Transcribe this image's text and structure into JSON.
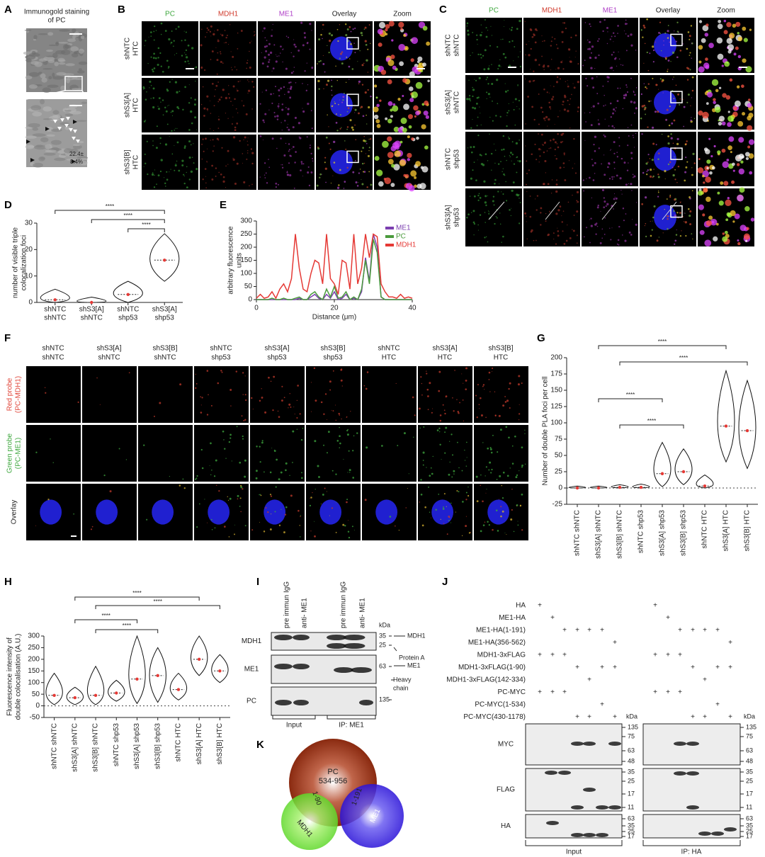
{
  "panel_letters": [
    "A",
    "B",
    "C",
    "D",
    "E",
    "F",
    "G",
    "H",
    "I",
    "J",
    "K"
  ],
  "panels": {
    "A": {
      "title": [
        "Immunogold staining",
        "of PC"
      ],
      "annotation": [
        "22.4±",
        "8.4%"
      ]
    },
    "B": {
      "columns": [
        "PC",
        "MDH1",
        "ME1",
        "Overlay",
        "Zoom"
      ],
      "column_colors": [
        "#3fa83f",
        "#d0392b",
        "#b040c8",
        "#222222",
        "#222222"
      ],
      "rows": [
        [
          "shNTC",
          "HTC"
        ],
        [
          "shS3[A]",
          "HTC"
        ],
        [
          "shS3[B]",
          "HTC"
        ]
      ]
    },
    "C": {
      "columns": [
        "PC",
        "MDH1",
        "ME1",
        "Overlay",
        "Zoom"
      ],
      "column_colors": [
        "#3fa83f",
        "#d0392b",
        "#b040c8",
        "#222222",
        "#222222"
      ],
      "rows": [
        [
          "shNTC",
          "shNTC"
        ],
        [
          "shS3[A]",
          "shNTC"
        ],
        [
          "shNTC",
          "shp53"
        ],
        [
          "shS3[A]",
          "shp53"
        ]
      ]
    },
    "F": {
      "columns": [
        [
          "shNTC",
          "shNTC"
        ],
        [
          "shS3[A]",
          "shNTC"
        ],
        [
          "shS3[B]",
          "shNTC"
        ],
        [
          "shNTC",
          "shp53"
        ],
        [
          "shS3[A]",
          "shp53"
        ],
        [
          "shS3[B]",
          "shp53"
        ],
        [
          "shNTC",
          "HTC"
        ],
        [
          "shS3[A]",
          "HTC"
        ],
        [
          "shS3[B]",
          "HTC"
        ]
      ],
      "rows": [
        {
          "lines": [
            "Red probe",
            "(PC-MDH1)"
          ],
          "color": "#e0463a"
        },
        {
          "lines": [
            "Green probe",
            "(PC-ME1)"
          ],
          "color": "#3fa83f"
        },
        {
          "lines": [
            "Overlay"
          ],
          "color": "#222222"
        }
      ]
    },
    "I": {
      "column_labels": [
        "pre immun IgG",
        "anti- ME1",
        "pre immun IgG",
        "anti- ME1"
      ],
      "kda": "kDa",
      "blots": [
        {
          "name": "MDH1",
          "markers": [
            35,
            25
          ]
        },
        {
          "name": "ME1",
          "markers": [
            63
          ]
        },
        {
          "name": "PC",
          "markers": [
            135
          ]
        }
      ],
      "annotations": [
        [
          "MDH1"
        ],
        [
          "Protein A"
        ],
        [
          "ME1"
        ],
        [
          "Heavy",
          "chain"
        ]
      ],
      "groups": [
        "Input",
        "IP: ME1"
      ]
    },
    "J": {
      "conditions": [
        {
          "label": "HA",
          "lanes": [
            "+",
            null,
            null,
            null,
            null,
            null,
            null
          ]
        },
        {
          "label": "ME1-HA",
          "lanes": [
            null,
            "+",
            null,
            null,
            null,
            null,
            null
          ]
        },
        {
          "label": "ME1-HA(1-191)",
          "lanes": [
            null,
            null,
            "+",
            "+",
            "+",
            "+",
            null
          ]
        },
        {
          "label": "ME1-HA(356-562)",
          "lanes": [
            null,
            null,
            null,
            null,
            null,
            null,
            "+"
          ]
        },
        {
          "label": "MDH1-3xFLAG",
          "lanes": [
            "+",
            "+",
            "+",
            null,
            null,
            null,
            null
          ]
        },
        {
          "label": "MDH1-3xFLAG(1-90)",
          "lanes": [
            null,
            null,
            null,
            "+",
            null,
            "+",
            "+"
          ]
        },
        {
          "label": "MDH1-3xFLAG(142-334)",
          "lanes": [
            null,
            null,
            null,
            null,
            "+",
            null,
            null
          ]
        },
        {
          "label": "PC-MYC",
          "lanes": [
            "+",
            "+",
            "+",
            null,
            null,
            null,
            null
          ]
        },
        {
          "label": "PC-MYC(1-534)",
          "lanes": [
            null,
            null,
            null,
            null,
            null,
            "+",
            null
          ]
        },
        {
          "label": "PC-MYC(430-1178)",
          "lanes": [
            null,
            null,
            null,
            "+",
            "+",
            null,
            "+"
          ]
        }
      ],
      "kda": "kDa",
      "blots": [
        {
          "name": "MYC",
          "markers": [
            135,
            75,
            63,
            48
          ]
        },
        {
          "name": "FLAG",
          "markers": [
            35,
            25,
            17,
            11
          ]
        },
        {
          "name": "HA",
          "markers": [
            63,
            35,
            25,
            17
          ]
        }
      ],
      "groups": [
        "Input",
        "IP: HA"
      ]
    },
    "K": {
      "circles": [
        "PC",
        "MDH1",
        "ME1"
      ],
      "pc_range": "534-956",
      "overlaps": [
        "1-90",
        "1-191"
      ]
    }
  },
  "chart_data": [
    {
      "type": "violin",
      "ylabel": [
        "number of visible triple",
        "colocalization foci"
      ],
      "categories": [
        [
          "shNTC",
          "shNTC"
        ],
        [
          "shS3[A]",
          "shNTC"
        ],
        [
          "shNTC",
          "shp53"
        ],
        [
          "shS3[A]",
          "shp53"
        ]
      ],
      "mins": [
        0,
        0,
        0,
        8
      ],
      "medians": [
        1,
        0,
        3,
        16
      ],
      "maxs": [
        5,
        2,
        8,
        26
      ],
      "color": "#e53935",
      "ylim": [
        0,
        30
      ],
      "yticks": [
        0,
        10,
        20,
        30
      ],
      "significance": [
        {
          "from": 0,
          "to": 3,
          "label": "****"
        },
        {
          "from": 1,
          "to": 3,
          "label": "****"
        },
        {
          "from": 2,
          "to": 3,
          "label": "****"
        }
      ]
    },
    {
      "type": "line",
      "ylabel": [
        "arbitrary fluorescence",
        "units"
      ],
      "xlabel": "Distance (μm)",
      "x": [
        0,
        1,
        2,
        3,
        4,
        5,
        6,
        7,
        8,
        9,
        10,
        11,
        12,
        13,
        14,
        15,
        16,
        17,
        18,
        19,
        20,
        21,
        22,
        23,
        24,
        25,
        26,
        27,
        28,
        29,
        30,
        31,
        32,
        33,
        34,
        35,
        36,
        37,
        38,
        39,
        40
      ],
      "series": [
        {
          "name": "ME1",
          "color": "#7b3fb0",
          "values": [
            0,
            0,
            0,
            0,
            0,
            0,
            0,
            0,
            0,
            0,
            0,
            5,
            0,
            0,
            10,
            20,
            5,
            0,
            20,
            5,
            30,
            0,
            5,
            20,
            0,
            5,
            0,
            30,
            160,
            70,
            250,
            200,
            10,
            0,
            0,
            0,
            0,
            0,
            0,
            0,
            0
          ]
        },
        {
          "name": "PC",
          "color": "#4a9a3c",
          "values": [
            0,
            0,
            0,
            0,
            5,
            0,
            0,
            5,
            0,
            0,
            5,
            10,
            0,
            0,
            20,
            30,
            10,
            0,
            40,
            10,
            50,
            5,
            10,
            30,
            0,
            10,
            0,
            40,
            150,
            60,
            230,
            180,
            10,
            0,
            0,
            0,
            0,
            0,
            0,
            0,
            0
          ]
        },
        {
          "name": "MDH1",
          "color": "#e53935",
          "values": [
            5,
            20,
            5,
            10,
            30,
            5,
            40,
            60,
            30,
            80,
            250,
            120,
            40,
            30,
            100,
            150,
            140,
            60,
            250,
            80,
            60,
            20,
            150,
            140,
            40,
            250,
            60,
            120,
            250,
            160,
            250,
            240,
            60,
            30,
            10,
            10,
            5,
            20,
            5,
            10,
            5
          ]
        }
      ],
      "xlim": [
        0,
        40
      ],
      "xticks": [
        0,
        20,
        40
      ],
      "ylim": [
        0,
        300
      ],
      "yticks": [
        0,
        50,
        100,
        150,
        200,
        250,
        300
      ],
      "legend": "upper right"
    },
    {
      "type": "violin",
      "ylabel": [
        "Number of double PLA foci per cell"
      ],
      "categories": [
        "shNTC shNTC",
        "shS3[A] shNTC",
        "shS3[B] shNTC",
        "shNTC shp53",
        "shS3[A] shp53",
        "shS3[B] shp53",
        "shNTC HTC",
        "shS3[A] HTC",
        "shS3[B] HTC"
      ],
      "mins": [
        0,
        0,
        0,
        0,
        2,
        5,
        0,
        40,
        30
      ],
      "medians": [
        0,
        0,
        1,
        1,
        22,
        25,
        3,
        95,
        88
      ],
      "maxs": [
        3,
        3,
        5,
        6,
        70,
        60,
        20,
        180,
        165
      ],
      "color": "#e53935",
      "ylim": [
        -25,
        200
      ],
      "yticks": [
        -25,
        0,
        25,
        50,
        75,
        100,
        125,
        150,
        175,
        200
      ],
      "significance": [
        {
          "from": 1,
          "to": 7,
          "label": "****"
        },
        {
          "from": 2,
          "to": 8,
          "label": "****"
        },
        {
          "from": 1,
          "to": 4,
          "label": "****"
        },
        {
          "from": 2,
          "to": 5,
          "label": "****"
        }
      ]
    },
    {
      "type": "violin",
      "ylabel": [
        "Fluorescence intensity of",
        "double colocalisation (A.U.)"
      ],
      "categories": [
        "shNTC shNTC",
        "shS3[A] shNTC",
        "shS3[B] shNTC",
        "shNTC shp53",
        "shS3[A] shp53",
        "shS3[B] shp53",
        "shNTC HTC",
        "shS3[A] HTC",
        "shS3[B] HTC"
      ],
      "mins": [
        5,
        5,
        5,
        20,
        10,
        15,
        25,
        130,
        100
      ],
      "medians": [
        45,
        35,
        45,
        55,
        115,
        130,
        70,
        200,
        150
      ],
      "maxs": [
        140,
        80,
        170,
        110,
        300,
        250,
        140,
        300,
        220
      ],
      "color": "#e53935",
      "ylim": [
        -50,
        300
      ],
      "yticks": [
        -50,
        0,
        50,
        100,
        150,
        200,
        250,
        300
      ],
      "significance": [
        {
          "from": 1,
          "to": 7,
          "label": "****"
        },
        {
          "from": 2,
          "to": 8,
          "label": "****"
        },
        {
          "from": 1,
          "to": 4,
          "label": "****"
        },
        {
          "from": 2,
          "to": 5,
          "label": "****"
        }
      ]
    }
  ]
}
